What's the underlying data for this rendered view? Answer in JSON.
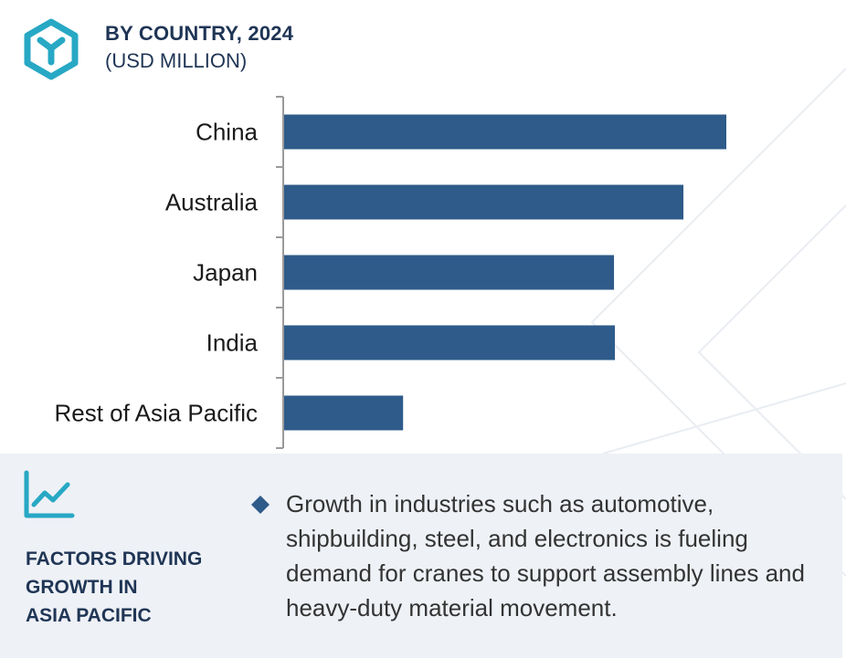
{
  "header": {
    "title": "BY COUNTRY, 2024",
    "subtitle": "(USD MILLION)",
    "logo_icon": "hexagon-y-logo-icon"
  },
  "colors": {
    "bar": "#2e5b8a",
    "accent": "#27a8c4",
    "heading": "#1f3555",
    "panel_bg": "#eef1f6",
    "axis": "#9a9a9a"
  },
  "chart_data": {
    "type": "bar",
    "orientation": "horizontal",
    "title": "BY COUNTRY, 2024",
    "subtitle": "(USD MILLION)",
    "categories": [
      "China",
      "Australia",
      "Japan",
      "India",
      "Rest of Asia Pacific"
    ],
    "values": [
      100,
      90.3,
      74.6,
      74.8,
      26.9
    ],
    "xlim": [
      0,
      100
    ],
    "grid": false,
    "legend": "none"
  },
  "factors": {
    "icon": "line-chart-icon",
    "title_lines": [
      "FACTORS DRIVING",
      "GROWTH IN",
      "ASIA PACIFIC"
    ],
    "bullet_icon": "diamond-bullet-icon",
    "bullet_text": "Growth in industries such as automotive, shipbuilding, steel, and electronics is fueling demand for cranes to support assembly lines and heavy-duty material movement."
  }
}
